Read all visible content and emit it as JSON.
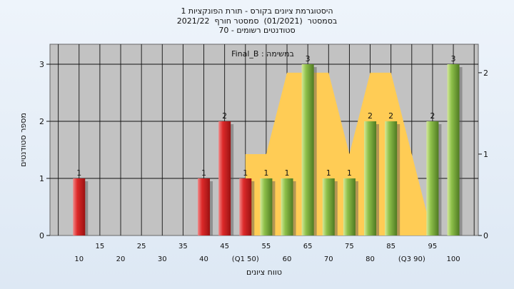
{
  "chart_data": {
    "type": "bar",
    "title_lines": [
      "היסטוגרמת ציונים בקורס - תורת הפונקציות 1",
      "בסמסטר  (01/2021)  סמסטר חורף  2021/22",
      "סטודנטים רשומים - 70"
    ],
    "legend_label": "Final_B : במשימה",
    "xlabel": "טווח ציונים",
    "ylabel": "מספר סטודנטים",
    "ylim": [
      0,
      3.35
    ],
    "y_ticks": [
      0,
      1,
      2,
      3
    ],
    "y2lim": [
      0,
      2.35
    ],
    "y2_ticks": [
      0,
      1,
      2
    ],
    "x_ticks_top": [
      "15",
      "25",
      "35",
      "45",
      "55",
      "65",
      "75",
      "85",
      "95"
    ],
    "x_ticks_bottom": [
      "10",
      "20",
      "30",
      "40",
      "(Q1 50)",
      "60",
      "70",
      "80",
      "(Q3 90)",
      "100"
    ],
    "bar_categories": [
      10,
      40,
      45,
      50,
      55,
      60,
      65,
      70,
      75,
      80,
      85,
      95,
      100
    ],
    "bar_values": [
      1,
      1,
      2,
      1,
      1,
      1,
      3,
      1,
      1,
      2,
      2,
      2,
      3
    ],
    "bar_colors": [
      "red",
      "red",
      "red",
      "red",
      "green",
      "green",
      "green",
      "green",
      "green",
      "green",
      "green",
      "green",
      "green"
    ],
    "area_series": {
      "x": [
        50,
        55,
        60,
        65,
        70,
        75,
        80,
        85,
        90,
        95
      ],
      "values": [
        1,
        1,
        2,
        2,
        2,
        1,
        2,
        2,
        1,
        0
      ]
    },
    "colors": {
      "red_bar": "#dd2a2a",
      "green_bar": "#8ec04a",
      "area": "#ffcc55",
      "plot_bg": "#c2c2c2"
    },
    "grid": true
  }
}
